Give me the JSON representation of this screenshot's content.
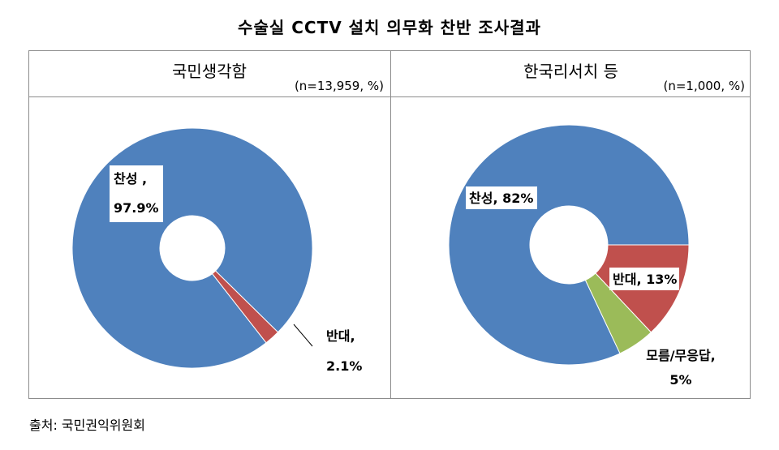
{
  "title": "수술실 CCTV 설치 의무화 찬반 조사결과",
  "source": "출처: 국민권익위원회",
  "colors": {
    "찬성": "#4f81bd",
    "반대": "#c0504d",
    "모름/무응답": "#9bbb59"
  },
  "chart_data": [
    {
      "type": "pie",
      "panel_title": "국민생각함",
      "note": "(n=13,959,  %)",
      "categories": [
        "찬성",
        "반대"
      ],
      "values": [
        97.9,
        2.1
      ],
      "labels": [
        [
          "찬성 ,",
          "97.9%"
        ],
        [
          "반대,",
          "2.1%"
        ]
      ]
    },
    {
      "type": "pie",
      "panel_title": "한국리서치 등",
      "note": "(n=1,000,  %)",
      "categories": [
        "찬성",
        "반대",
        "모름/무응답"
      ],
      "values": [
        82,
        13,
        5
      ],
      "labels": [
        [
          "찬성, 82%"
        ],
        [
          "반대, 13%"
        ],
        [
          "모름/무응답,",
          "5%"
        ]
      ]
    }
  ]
}
